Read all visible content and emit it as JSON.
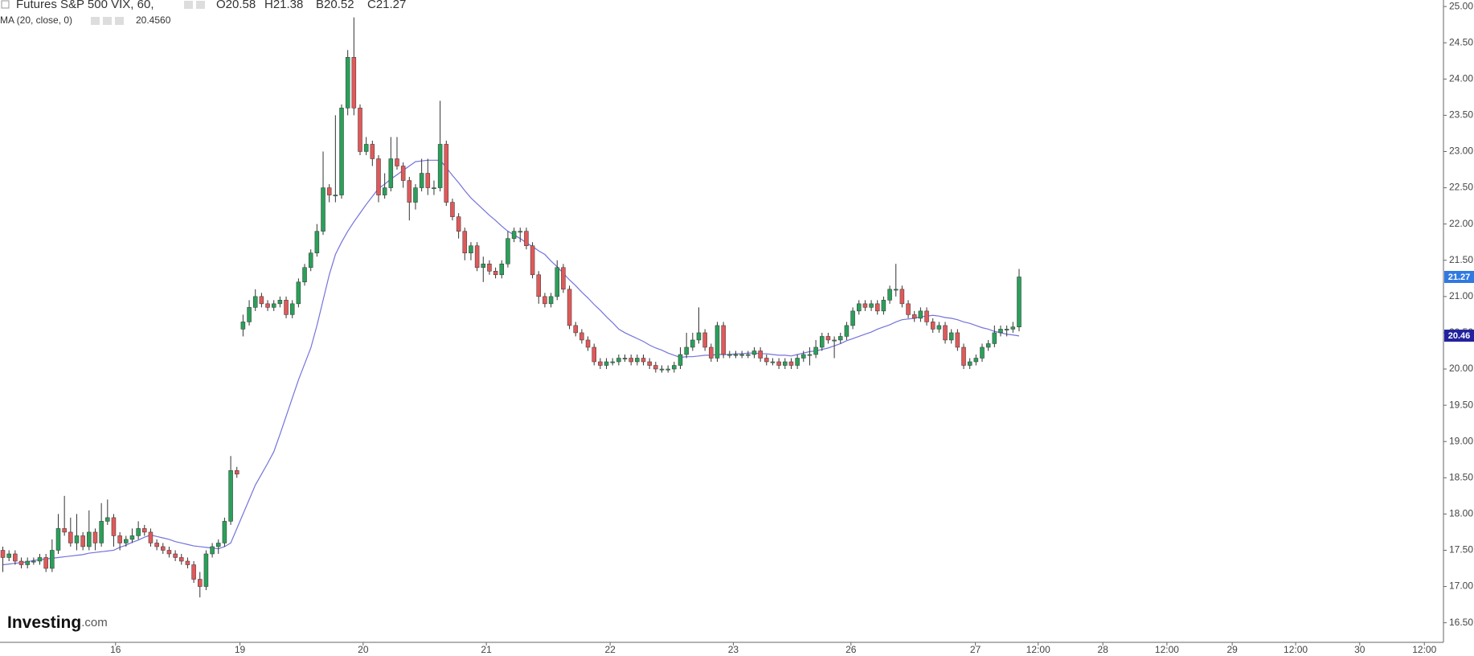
{
  "chart_data": {
    "type": "candlestick",
    "title": "Futures S&P 500 VIX, 60,",
    "header_values": [
      "O20.58",
      "H21.38",
      "B20.52",
      "C21.27"
    ],
    "indicator": {
      "label": "MA (20, close, 0)",
      "value_label": "20.4560",
      "color": "#7373dc",
      "values": [
        17.3,
        17.31,
        17.32,
        17.33,
        17.34,
        17.36,
        17.37,
        17.38,
        17.39,
        17.4,
        17.41,
        17.42,
        17.43,
        17.44,
        17.46,
        17.47,
        17.48,
        17.49,
        17.5,
        17.54,
        17.57,
        17.61,
        17.64,
        17.68,
        17.71,
        17.69,
        17.67,
        17.65,
        17.62,
        17.6,
        17.58,
        17.56,
        17.55,
        17.54,
        17.53,
        17.52,
        17.55,
        17.6,
        17.8,
        18.0,
        18.2,
        18.4,
        18.55,
        18.7,
        18.86,
        19.1,
        19.35,
        19.6,
        19.85,
        20.07,
        20.29,
        20.6,
        20.95,
        21.3,
        21.58,
        21.75,
        21.9,
        22.03,
        22.15,
        22.27,
        22.38,
        22.49,
        22.55,
        22.62,
        22.68,
        22.74,
        22.8,
        22.86,
        22.87,
        22.88,
        22.88,
        22.88,
        22.78,
        22.67,
        22.57,
        22.46,
        22.36,
        22.28,
        22.2,
        22.12,
        22.05,
        21.97,
        21.9,
        21.85,
        21.8,
        21.74,
        21.69,
        21.63,
        21.58,
        21.49,
        21.41,
        21.32,
        21.23,
        21.15,
        21.06,
        20.98,
        20.89,
        20.81,
        20.72,
        20.64,
        20.55,
        20.5,
        20.46,
        20.42,
        20.38,
        20.33,
        20.29,
        20.26,
        20.22,
        20.19,
        20.16,
        20.17,
        20.17,
        20.18,
        20.19,
        20.19,
        20.2,
        20.2,
        20.2,
        20.21,
        20.21,
        20.22,
        20.22,
        20.21,
        20.21,
        20.2,
        20.19,
        20.19,
        20.18,
        20.2,
        20.22,
        20.24,
        20.25,
        20.27,
        20.29,
        20.32,
        20.35,
        20.39,
        20.42,
        20.45,
        20.48,
        20.51,
        20.55,
        20.58,
        20.61,
        20.65,
        20.68,
        20.69,
        20.7,
        20.72,
        20.73,
        20.74,
        20.73,
        20.71,
        20.7,
        20.68,
        20.65,
        20.63,
        20.6,
        20.57,
        20.55,
        20.52,
        20.5,
        20.48,
        20.47,
        20.456
      ]
    },
    "up_color": "#2aa05a",
    "down_color": "#e0595a",
    "x": [
      0,
      1,
      2,
      3,
      4,
      5,
      6,
      7,
      8,
      9,
      10,
      11,
      12,
      13,
      14,
      15,
      16,
      17,
      18,
      19,
      20,
      21,
      22,
      23,
      24,
      25,
      26,
      27,
      28,
      29,
      30,
      31,
      32,
      33,
      34,
      35,
      36,
      37,
      38,
      39,
      40,
      41,
      42,
      43,
      44,
      45,
      46,
      47,
      48,
      49,
      50,
      51,
      52,
      53,
      54,
      55,
      56,
      57,
      58,
      59,
      60,
      61,
      62,
      63,
      64,
      65,
      66,
      67,
      68,
      69,
      70,
      71,
      72,
      73,
      74,
      75,
      76,
      77,
      78,
      79,
      80,
      81,
      82,
      83,
      84,
      85,
      86,
      87,
      88,
      89,
      90,
      91,
      92,
      93,
      94,
      95,
      96,
      97,
      98,
      99,
      100,
      101,
      102,
      103,
      104,
      105,
      106,
      107,
      108,
      109,
      110,
      111,
      112,
      113,
      114,
      115,
      116,
      117,
      118,
      119,
      120,
      121,
      122,
      123,
      124,
      125,
      126,
      127,
      128,
      129,
      130,
      131,
      132,
      133,
      134,
      135,
      136,
      137,
      138,
      139,
      140,
      141,
      142,
      143,
      144,
      145,
      146,
      147,
      148,
      149,
      150,
      151,
      152,
      153,
      154,
      155,
      156,
      157,
      158,
      159,
      160,
      161,
      162,
      163,
      164,
      165
    ],
    "open": [
      17.5,
      17.4,
      17.45,
      17.35,
      17.3,
      17.35,
      17.35,
      17.4,
      17.25,
      17.5,
      17.8,
      17.75,
      17.6,
      17.7,
      17.55,
      17.75,
      17.6,
      17.9,
      17.95,
      17.7,
      17.6,
      17.65,
      17.7,
      17.8,
      17.75,
      17.6,
      17.55,
      17.5,
      17.45,
      17.4,
      17.35,
      17.3,
      17.1,
      17.0,
      17.45,
      17.55,
      17.6,
      17.9,
      18.6,
      20.55,
      20.65,
      20.85,
      21.0,
      20.9,
      20.85,
      20.9,
      20.95,
      20.75,
      20.9,
      21.2,
      21.4,
      21.6,
      21.9,
      22.5,
      22.4,
      22.4,
      23.6,
      24.3,
      23.6,
      23.0,
      23.1,
      22.9,
      22.4,
      22.5,
      22.9,
      22.8,
      22.6,
      22.3,
      22.5,
      22.7,
      22.5,
      22.5,
      23.1,
      22.3,
      22.1,
      21.9,
      21.6,
      21.7,
      21.4,
      21.45,
      21.35,
      21.3,
      21.45,
      21.8,
      21.9,
      21.9,
      21.7,
      21.3,
      21.0,
      20.9,
      21.0,
      21.4,
      21.1,
      20.6,
      20.5,
      20.4,
      20.3,
      20.1,
      20.05,
      20.1,
      20.1,
      20.15,
      20.15,
      20.1,
      20.15,
      20.1,
      20.05,
      20.0,
      20.0,
      20.0,
      20.05,
      20.2,
      20.3,
      20.4,
      20.5,
      20.3,
      20.15,
      20.6,
      20.2,
      20.2,
      20.2,
      20.2,
      20.2,
      20.25,
      20.15,
      20.1,
      20.1,
      20.05,
      20.1,
      20.05,
      20.15,
      20.2,
      20.2,
      20.3,
      20.45,
      20.4,
      20.4,
      20.45,
      20.6,
      20.8,
      20.9,
      20.85,
      20.9,
      20.8,
      20.95,
      21.1,
      21.1,
      20.9,
      20.75,
      20.7,
      20.8,
      20.65,
      20.55,
      20.6,
      20.4,
      20.5,
      20.3,
      20.05,
      20.1,
      20.15,
      20.3,
      20.35,
      20.5,
      20.55,
      20.55,
      20.58
    ],
    "high": [
      17.55,
      17.5,
      17.5,
      17.4,
      17.4,
      17.4,
      17.45,
      17.45,
      17.65,
      18.0,
      18.25,
      17.95,
      18.0,
      17.75,
      18.05,
      17.8,
      18.15,
      18.2,
      18.0,
      17.75,
      17.7,
      17.8,
      17.9,
      17.85,
      17.8,
      17.65,
      17.6,
      17.55,
      17.5,
      17.45,
      17.4,
      17.35,
      17.2,
      17.5,
      17.6,
      17.65,
      17.95,
      18.8,
      18.65,
      20.75,
      20.95,
      21.1,
      21.05,
      20.95,
      20.95,
      21.0,
      21.0,
      20.95,
      21.25,
      21.45,
      21.65,
      22.0,
      23.0,
      22.55,
      23.5,
      23.65,
      24.4,
      24.85,
      23.65,
      23.2,
      23.15,
      22.95,
      22.7,
      23.2,
      23.2,
      22.85,
      22.65,
      22.55,
      22.9,
      22.9,
      22.6,
      23.7,
      23.15,
      22.35,
      22.15,
      21.95,
      21.75,
      21.75,
      21.55,
      21.5,
      21.4,
      21.5,
      21.9,
      21.95,
      21.95,
      21.95,
      21.75,
      21.35,
      21.05,
      21.05,
      21.5,
      21.45,
      21.15,
      20.65,
      20.55,
      20.45,
      20.35,
      20.15,
      20.15,
      20.15,
      20.2,
      20.2,
      20.2,
      20.2,
      20.2,
      20.15,
      20.1,
      20.05,
      20.05,
      20.1,
      20.3,
      20.5,
      20.5,
      20.85,
      20.55,
      20.35,
      20.65,
      20.65,
      20.25,
      20.25,
      20.25,
      20.25,
      20.3,
      20.3,
      20.2,
      20.15,
      20.15,
      20.15,
      20.15,
      20.2,
      20.25,
      20.3,
      20.4,
      20.5,
      20.5,
      20.45,
      20.5,
      20.65,
      20.85,
      20.95,
      20.95,
      20.95,
      20.95,
      21.0,
      21.15,
      21.45,
      21.15,
      20.95,
      20.8,
      20.85,
      20.85,
      20.7,
      20.65,
      20.65,
      20.55,
      20.55,
      20.35,
      20.15,
      20.2,
      20.35,
      20.4,
      20.6,
      20.6,
      20.6,
      20.65,
      21.38
    ],
    "low": [
      17.2,
      17.35,
      17.3,
      17.25,
      17.25,
      17.3,
      17.3,
      17.2,
      17.2,
      17.45,
      17.7,
      17.55,
      17.5,
      17.5,
      17.5,
      17.5,
      17.55,
      17.85,
      17.55,
      17.5,
      17.55,
      17.6,
      17.65,
      17.7,
      17.55,
      17.5,
      17.45,
      17.4,
      17.35,
      17.3,
      17.25,
      17.05,
      16.85,
      16.95,
      17.4,
      17.45,
      17.55,
      17.85,
      18.5,
      20.45,
      20.6,
      20.8,
      20.85,
      20.8,
      20.8,
      20.85,
      20.7,
      20.7,
      20.85,
      21.15,
      21.35,
      21.55,
      21.85,
      22.3,
      22.3,
      22.35,
      23.5,
      23.5,
      22.95,
      22.95,
      22.8,
      22.3,
      22.35,
      22.45,
      22.75,
      22.5,
      22.05,
      22.2,
      22.45,
      22.4,
      22.4,
      22.45,
      22.25,
      22.05,
      21.8,
      21.5,
      21.5,
      21.35,
      21.2,
      21.3,
      21.25,
      21.25,
      21.4,
      21.75,
      21.75,
      21.65,
      21.25,
      20.9,
      20.85,
      20.85,
      20.95,
      21.05,
      20.55,
      20.45,
      20.35,
      20.25,
      20.05,
      20.0,
      20.0,
      20.05,
      20.05,
      20.1,
      20.05,
      20.05,
      20.05,
      20.0,
      19.95,
      19.95,
      19.95,
      19.95,
      20.0,
      20.15,
      20.25,
      20.35,
      20.25,
      20.1,
      20.1,
      20.15,
      20.15,
      20.15,
      20.15,
      20.15,
      20.15,
      20.1,
      20.05,
      20.05,
      20.0,
      20.0,
      20.0,
      20.0,
      20.1,
      20.05,
      20.15,
      20.25,
      20.35,
      20.15,
      20.35,
      20.4,
      20.55,
      20.75,
      20.8,
      20.8,
      20.75,
      20.75,
      20.9,
      21.0,
      20.85,
      20.7,
      20.65,
      20.65,
      20.6,
      20.5,
      20.5,
      20.35,
      20.35,
      20.25,
      20.0,
      20.0,
      20.05,
      20.1,
      20.25,
      20.3,
      20.45,
      20.45,
      20.5,
      20.52
    ],
    "close": [
      17.4,
      17.45,
      17.35,
      17.3,
      17.35,
      17.35,
      17.4,
      17.25,
      17.5,
      17.8,
      17.75,
      17.6,
      17.7,
      17.55,
      17.75,
      17.6,
      17.9,
      17.95,
      17.7,
      17.6,
      17.65,
      17.7,
      17.8,
      17.75,
      17.6,
      17.55,
      17.5,
      17.45,
      17.4,
      17.35,
      17.3,
      17.1,
      17.0,
      17.45,
      17.55,
      17.6,
      17.9,
      18.6,
      18.55,
      20.65,
      20.85,
      21.0,
      20.9,
      20.85,
      20.9,
      20.95,
      20.75,
      20.9,
      21.2,
      21.4,
      21.6,
      21.9,
      22.5,
      22.4,
      22.4,
      23.6,
      24.3,
      23.6,
      23.0,
      23.1,
      22.9,
      22.4,
      22.5,
      22.9,
      22.8,
      22.6,
      22.3,
      22.5,
      22.7,
      22.5,
      22.5,
      23.1,
      22.3,
      22.1,
      21.9,
      21.6,
      21.7,
      21.4,
      21.45,
      21.35,
      21.3,
      21.45,
      21.8,
      21.9,
      21.9,
      21.7,
      21.3,
      21.0,
      20.9,
      21.0,
      21.4,
      21.1,
      20.6,
      20.5,
      20.4,
      20.3,
      20.1,
      20.05,
      20.1,
      20.1,
      20.15,
      20.15,
      20.1,
      20.15,
      20.1,
      20.05,
      20.0,
      20.0,
      20.0,
      20.05,
      20.2,
      20.3,
      20.4,
      20.5,
      20.3,
      20.15,
      20.6,
      20.2,
      20.2,
      20.2,
      20.2,
      20.2,
      20.25,
      20.15,
      20.1,
      20.1,
      20.05,
      20.1,
      20.05,
      20.15,
      20.2,
      20.2,
      20.3,
      20.45,
      20.4,
      20.4,
      20.45,
      20.6,
      20.8,
      20.9,
      20.85,
      20.9,
      20.8,
      20.95,
      21.1,
      21.1,
      20.9,
      20.75,
      20.7,
      20.8,
      20.65,
      20.55,
      20.6,
      20.4,
      20.5,
      20.3,
      20.05,
      20.1,
      20.15,
      20.3,
      20.35,
      20.5,
      20.55,
      20.55,
      20.58,
      21.27
    ],
    "price_markers": [
      {
        "value": 21.27,
        "label": "21.27",
        "color": "#3179e0"
      },
      {
        "value": 20.46,
        "label": "20.46",
        "color": "#22229e"
      }
    ],
    "xlim": [
      -0.46,
      233.9
    ],
    "xticks": [
      {
        "value": 18.3,
        "label": "16"
      },
      {
        "value": 38.5,
        "label": "19"
      },
      {
        "value": 58.5,
        "label": "20"
      },
      {
        "value": 78.5,
        "label": "21"
      },
      {
        "value": 98.6,
        "label": "22"
      },
      {
        "value": 118.6,
        "label": "23"
      },
      {
        "value": 137.7,
        "label": "26"
      },
      {
        "value": 157.9,
        "label": "27"
      },
      {
        "value": 168.1,
        "label": "12:00"
      },
      {
        "value": 178.6,
        "label": "28"
      },
      {
        "value": 189.0,
        "label": "12:00"
      },
      {
        "value": 199.6,
        "label": "29"
      },
      {
        "value": 209.9,
        "label": "12:00"
      },
      {
        "value": 220.3,
        "label": "30"
      },
      {
        "value": 230.8,
        "label": "12:00"
      }
    ],
    "ylim": [
      16.23,
      25.09
    ],
    "yticks": [
      {
        "value": 16.5,
        "label": "16.50"
      },
      {
        "value": 17,
        "label": "17.00"
      },
      {
        "value": 17.5,
        "label": "17.50"
      },
      {
        "value": 18,
        "label": "18.00"
      },
      {
        "value": 18.5,
        "label": "18.50"
      },
      {
        "value": 19,
        "label": "19.00"
      },
      {
        "value": 19.5,
        "label": "19.50"
      },
      {
        "value": 20,
        "label": "20.00"
      },
      {
        "value": 20.5,
        "label": "20.50"
      },
      {
        "value": 21,
        "label": "21.00"
      },
      {
        "value": 21.5,
        "label": "21.50"
      },
      {
        "value": 22,
        "label": "22.00"
      },
      {
        "value": 22.5,
        "label": "22.50"
      },
      {
        "value": 23,
        "label": "23.00"
      },
      {
        "value": 23.5,
        "label": "23.50"
      },
      {
        "value": 24,
        "label": "24.00"
      },
      {
        "value": 24.5,
        "label": "24.50"
      },
      {
        "value": 25,
        "label": "25.00"
      }
    ],
    "grid": false,
    "watermark": [
      "Investing",
      ".com"
    ]
  }
}
